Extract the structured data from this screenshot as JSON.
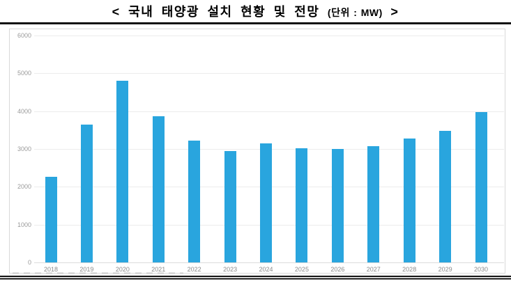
{
  "title": {
    "prefix": "< 국내 태양광 설치 현황 및 전망",
    "unit": "(단위 : MW)",
    "suffix": ">"
  },
  "chart_data": {
    "type": "bar",
    "title": "국내 태양광 설치 현황 및 전망",
    "unit_label": "단위 : MW",
    "categories": [
      "2018",
      "2019",
      "2020",
      "2021",
      "2022",
      "2023",
      "2024",
      "2025",
      "2026",
      "2027",
      "2028",
      "2029",
      "2030"
    ],
    "values": [
      2270,
      3650,
      4800,
      3860,
      3220,
      2950,
      3150,
      3020,
      3000,
      3080,
      3280,
      3480,
      3980
    ],
    "xlabel": "",
    "ylabel": "",
    "ylim": [
      0,
      6000
    ],
    "yticks": [
      0,
      1000,
      2000,
      3000,
      4000,
      5000,
      6000
    ],
    "grid": true,
    "legend": "none",
    "bar_color": "#29a5de",
    "gridline_color": "#ececec",
    "tick_label_color": "#9a9a9a"
  }
}
